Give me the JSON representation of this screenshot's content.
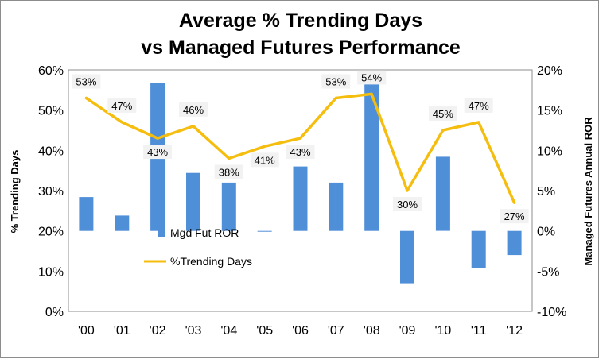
{
  "chart_data": {
    "type": "bar+line",
    "title_lines": [
      "Average % Trending Days",
      "vs Managed Futures Performance"
    ],
    "categories": [
      "'00",
      "'01",
      "'02",
      "'03",
      "'04",
      "'05",
      "'06",
      "'07",
      "'08",
      "'09",
      "'10",
      "'11",
      "'12"
    ],
    "y_left": {
      "label": "% Trending Days",
      "min": 0,
      "max": 60,
      "step": 10,
      "ticks": [
        "0%",
        "10%",
        "20%",
        "30%",
        "40%",
        "50%",
        "60%"
      ]
    },
    "y_right": {
      "label": "Managed Futures Annual ROR",
      "min": -10,
      "max": 20,
      "step": 5,
      "ticks": [
        "-10%",
        "-5%",
        "0%",
        "5%",
        "10%",
        "15%",
        "20%"
      ]
    },
    "series": [
      {
        "name": "Mgd Fut ROR",
        "type": "bar",
        "axis": "right",
        "color": "#4f8fd8",
        "values": [
          4.2,
          1.9,
          18.4,
          7.2,
          6.0,
          -0.1,
          8.0,
          6.0,
          18.6,
          -6.5,
          9.2,
          -4.6,
          -3.0
        ]
      },
      {
        "name": "%Trending Days",
        "type": "line",
        "axis": "left",
        "color": "#f5be0f",
        "values": [
          53,
          47,
          43,
          46,
          38,
          41,
          43,
          53,
          54,
          30,
          45,
          47,
          27
        ],
        "data_labels": [
          "53%",
          "47%",
          "43%",
          "46%",
          "38%",
          "41%",
          "43%",
          "53%",
          "54%",
          "30%",
          "45%",
          "47%",
          "27%"
        ]
      }
    ],
    "legend": {
      "placement": "inside-bottom-left"
    },
    "grid": false
  }
}
